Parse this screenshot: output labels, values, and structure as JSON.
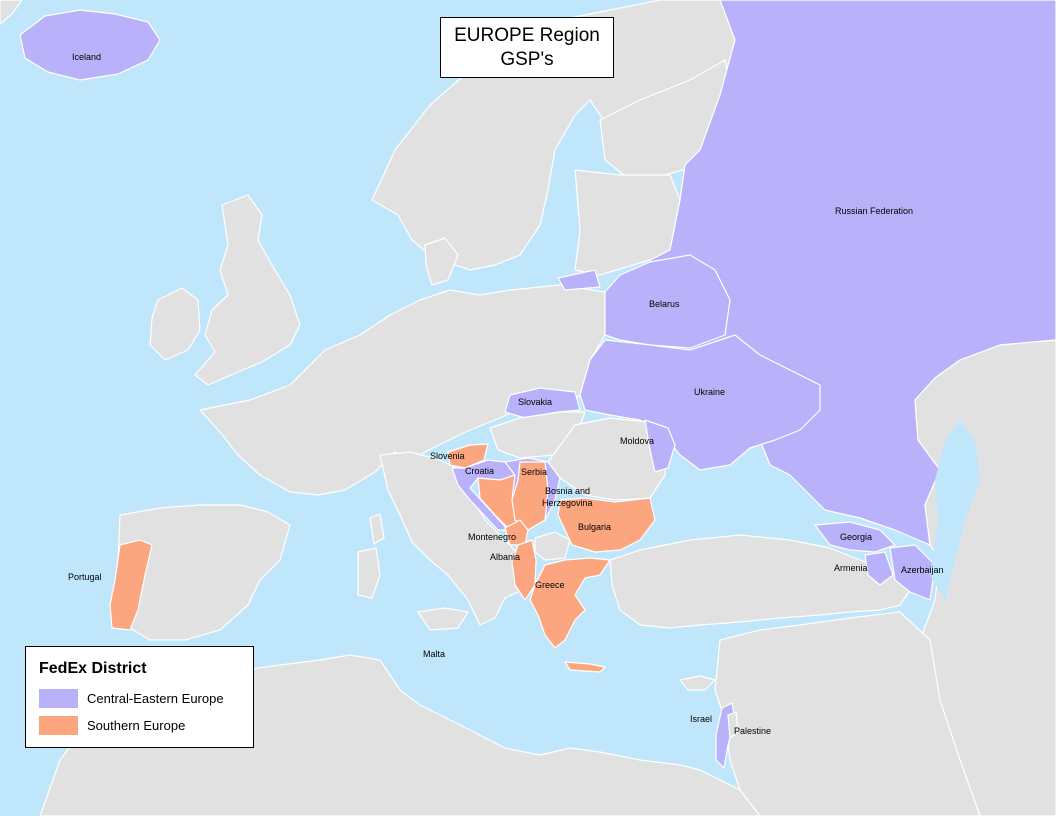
{
  "title": {
    "line1": "EUROPE Region",
    "line2": "GSP's"
  },
  "legend": {
    "title": "FedEx District",
    "items": [
      {
        "label": "Central-Eastern Europe",
        "color": "#b9b2fa"
      },
      {
        "label": "Southern Europe",
        "color": "#fca680"
      }
    ]
  },
  "colors": {
    "sea": "#bfe6fb",
    "land": "#e1e1e1",
    "border": "#ffffff"
  },
  "labels": {
    "iceland": "Iceland",
    "russia": "Russian Federation",
    "belarus": "Belarus",
    "ukraine": "Ukraine",
    "slovakia": "Slovakia",
    "moldova": "Moldova",
    "slovenia": "Slovenia",
    "croatia": "Croatia",
    "serbia": "Serbia",
    "bosnia1": "Bosnia and",
    "bosnia2": "Herzegovina",
    "bulgaria": "Bulgaria",
    "montenegro": "Montenegro",
    "albania": "Albania",
    "greece": "Greece",
    "georgia": "Georgia",
    "armenia": "Armenia",
    "azerbaijan": "Azerbaijan",
    "portugal": "Portugal",
    "malta": "Malta",
    "israel": "Israel",
    "palestine": "Palestine"
  }
}
